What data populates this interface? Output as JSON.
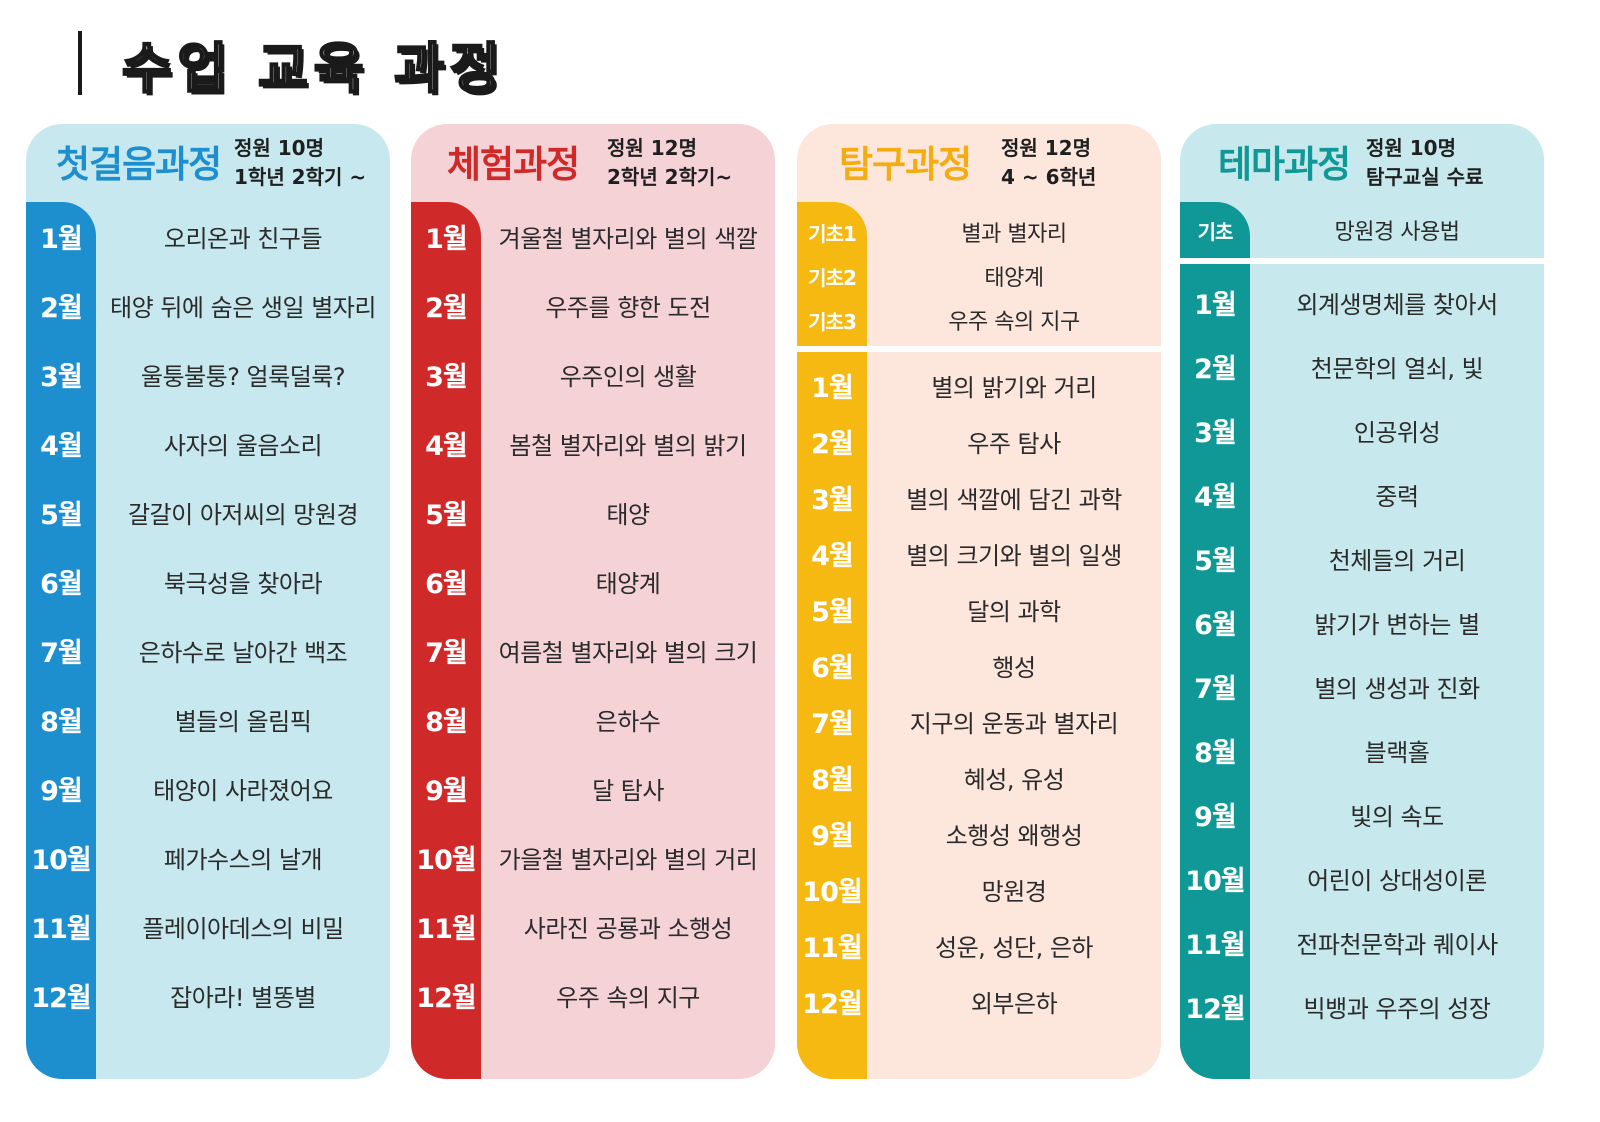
{
  "page": {
    "title": "수업 교육 과정"
  },
  "colors": {
    "blue_strip": "#1e8fce",
    "blue_bg": "#c7e8ef",
    "blue_title": "#1e8fce",
    "red_strip": "#cf2a29",
    "red_bg": "#f5d2d6",
    "red_title": "#cf2a29",
    "yellow_strip": "#f6b912",
    "yellow_bg": "#fde6dc",
    "yellow_title": "#f3ad10",
    "teal_strip": "#0f9896",
    "teal_bg": "#c7e8ec",
    "teal_title": "#0f9896"
  },
  "courses": [
    {
      "name": "첫걸음과정",
      "info1": "정원 10명",
      "info2": "1학년 2학기 ~",
      "months": [
        {
          "month": "1월",
          "topic": "오리온과 친구들"
        },
        {
          "month": "2월",
          "topic": "태양 뒤에 숨은 생일 별자리"
        },
        {
          "month": "3월",
          "topic": "울퉁불퉁? 얼룩덜룩?"
        },
        {
          "month": "4월",
          "topic": "사자의 울음소리"
        },
        {
          "month": "5월",
          "topic": "갈갈이 아저씨의 망원경"
        },
        {
          "month": "6월",
          "topic": "북극성을 찾아라"
        },
        {
          "month": "7월",
          "topic": "은하수로 날아간 백조"
        },
        {
          "month": "8월",
          "topic": "별들의 올림픽"
        },
        {
          "month": "9월",
          "topic": "태양이 사라졌어요"
        },
        {
          "month": "10월",
          "topic": "페가수스의 날개"
        },
        {
          "month": "11월",
          "topic": "플레이아데스의 비밀"
        },
        {
          "month": "12월",
          "topic": "잡아라! 별똥별"
        }
      ]
    },
    {
      "name": "체험과정",
      "info1": "정원 12명",
      "info2": "2학년 2학기~",
      "months": [
        {
          "month": "1월",
          "topic": "겨울철 별자리와 별의 색깔"
        },
        {
          "month": "2월",
          "topic": "우주를 향한 도전"
        },
        {
          "month": "3월",
          "topic": "우주인의 생활"
        },
        {
          "month": "4월",
          "topic": "봄철 별자리와 별의 밝기"
        },
        {
          "month": "5월",
          "topic": "태양"
        },
        {
          "month": "6월",
          "topic": "태양계"
        },
        {
          "month": "7월",
          "topic": "여름철 별자리와 별의 크기"
        },
        {
          "month": "8월",
          "topic": "은하수"
        },
        {
          "month": "9월",
          "topic": "달 탐사"
        },
        {
          "month": "10월",
          "topic": "가을철 별자리와 별의 거리"
        },
        {
          "month": "11월",
          "topic": "사라진 공룡과 소행성"
        },
        {
          "month": "12월",
          "topic": "우주 속의 지구"
        }
      ]
    },
    {
      "name": "탐구과정",
      "info1": "정원 12명",
      "info2": "4 ~ 6학년",
      "basics": [
        {
          "label": "기초1",
          "topic": "별과 별자리"
        },
        {
          "label": "기초2",
          "topic": "태양계"
        },
        {
          "label": "기초3",
          "topic": "우주 속의 지구"
        }
      ],
      "months": [
        {
          "month": "1월",
          "topic": "별의 밝기와 거리"
        },
        {
          "month": "2월",
          "topic": "우주 탐사"
        },
        {
          "month": "3월",
          "topic": "별의 색깔에 담긴 과학"
        },
        {
          "month": "4월",
          "topic": "별의 크기와 별의 일생"
        },
        {
          "month": "5월",
          "topic": "달의 과학"
        },
        {
          "month": "6월",
          "topic": "행성"
        },
        {
          "month": "7월",
          "topic": "지구의 운동과 별자리"
        },
        {
          "month": "8월",
          "topic": "혜성, 유성"
        },
        {
          "month": "9월",
          "topic": "소행성 왜행성"
        },
        {
          "month": "10월",
          "topic": "망원경"
        },
        {
          "month": "11월",
          "topic": "성운, 성단, 은하"
        },
        {
          "month": "12월",
          "topic": "외부은하"
        }
      ]
    },
    {
      "name": "테마과정",
      "info1": "정원 10명",
      "info2": "탐구교실 수료",
      "basics": [
        {
          "label": "기초",
          "topic": "망원경 사용법"
        }
      ],
      "months": [
        {
          "month": "1월",
          "topic": "외계생명체를 찾아서"
        },
        {
          "month": "2월",
          "topic": "천문학의 열쇠, 빛"
        },
        {
          "month": "3월",
          "topic": "인공위성"
        },
        {
          "month": "4월",
          "topic": "중력"
        },
        {
          "month": "5월",
          "topic": "천체들의 거리"
        },
        {
          "month": "6월",
          "topic": "밝기가 변하는 별"
        },
        {
          "month": "7월",
          "topic": "별의 생성과 진화"
        },
        {
          "month": "8월",
          "topic": "블랙홀"
        },
        {
          "month": "9월",
          "topic": "빛의 속도"
        },
        {
          "month": "10월",
          "topic": "어린이 상대성이론"
        },
        {
          "month": "11월",
          "topic": "전파천문학과 퀘이사"
        },
        {
          "month": "12월",
          "topic": "빅뱅과 우주의 성장"
        }
      ]
    }
  ]
}
